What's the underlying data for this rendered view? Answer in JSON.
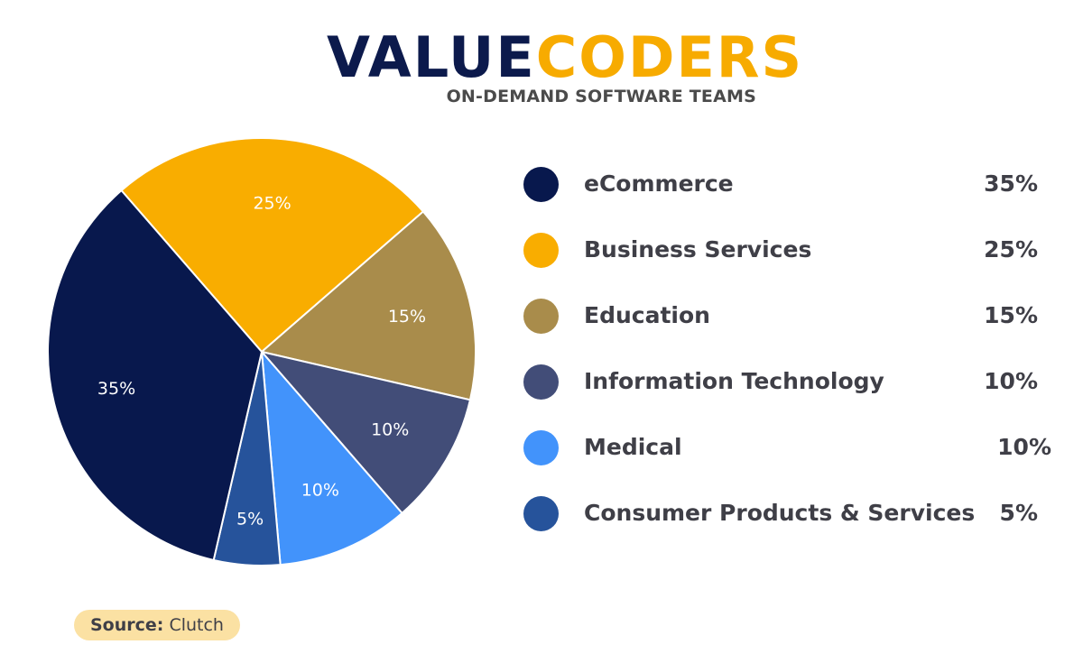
{
  "brand": {
    "word_a": "VALUE",
    "word_b": "CODERS",
    "tagline": "ON-DEMAND SOFTWARE TEAMS",
    "color_a": "#0c1a4c",
    "color_b": "#f7ab00"
  },
  "chart_data": {
    "type": "pie",
    "title": "",
    "slices": [
      {
        "label": "eCommerce",
        "value": 35,
        "display": "35%",
        "color": "#08184d"
      },
      {
        "label": "Business Services",
        "value": 25,
        "display": "25%",
        "color": "#f9ad00"
      },
      {
        "label": "Education",
        "value": 15,
        "display": "15%",
        "color": "#a98c4b"
      },
      {
        "label": "Information Technology",
        "value": 10,
        "display": "10%",
        "color": "#424d78"
      },
      {
        "label": "Medical",
        "value": 10,
        "display": "10%",
        "color": "#4293fb"
      },
      {
        "label": "Consumer Products & Services",
        "value": 5,
        "display": "5%",
        "color": "#26539b"
      }
    ],
    "legend_position": "right"
  },
  "source": {
    "key": "Source:",
    "value": "Clutch"
  }
}
